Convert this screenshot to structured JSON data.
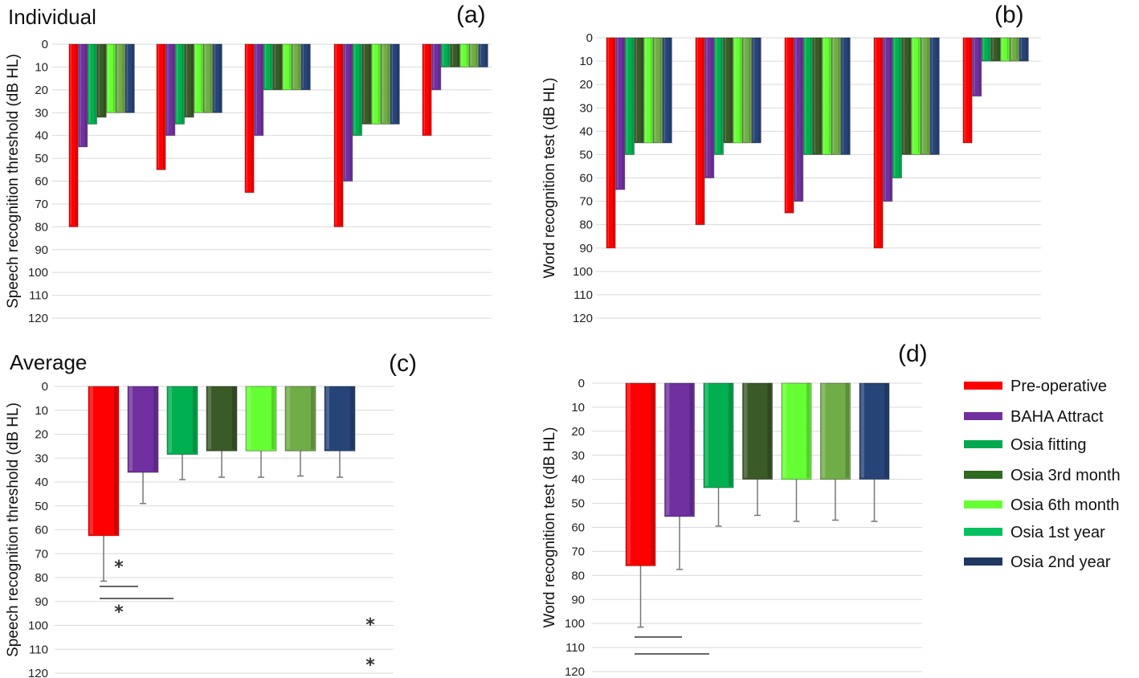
{
  "colors": [
    "#ff0000",
    "#7030a0",
    "#00b050",
    "#3a5a28",
    "#66ff33",
    "#70ad47",
    "#264478"
  ],
  "legend": {
    "placement": "right",
    "entries": [
      {
        "label": "Pre-operative",
        "color": "#ff0000"
      },
      {
        "label": "BAHA Attract",
        "color": "#7030a0"
      },
      {
        "label": "Osia fitting",
        "color": "#00a850"
      },
      {
        "label": "Osia 3rd month",
        "color": "#2e6b1e"
      },
      {
        "label": "Osia 6th month",
        "color": "#66ff33"
      },
      {
        "label": "Osia 1st year",
        "color": "#00c060"
      },
      {
        "label": "Osia 2nd year",
        "color": "#1f3864"
      }
    ]
  },
  "chart_data": [
    {
      "panel": "(a)",
      "title": "Individual",
      "type": "bar",
      "orientation": "inverted-y",
      "ylabel": "Speech recognition threshold (dB HL)",
      "ylim": [
        0,
        120
      ],
      "yticks": [
        "0",
        "10",
        "20",
        "30",
        "40",
        "50",
        "60",
        "70",
        "80",
        "90",
        "100",
        "110",
        "120"
      ],
      "grid": true,
      "series_names": [
        "Pre-operative",
        "BAHA Attract",
        "Osia fitting",
        "Osia 3rd month",
        "Osia 6th month",
        "Osia 1st year",
        "Osia 2nd year"
      ],
      "groups": [
        [
          80,
          45,
          35,
          32,
          30,
          30,
          30
        ],
        [
          55,
          40,
          35,
          32,
          30,
          30,
          30
        ],
        [
          65,
          40,
          20,
          20,
          20,
          20,
          20
        ],
        [
          80,
          60,
          40,
          35,
          35,
          35,
          35
        ],
        [
          40,
          20,
          10,
          10,
          10,
          10,
          10
        ]
      ]
    },
    {
      "panel": "(b)",
      "title": "",
      "type": "bar",
      "orientation": "inverted-y",
      "ylabel": "Word recognition test (dB HL)",
      "ylim": [
        0,
        120
      ],
      "yticks": [
        "0",
        "10",
        "20",
        "30",
        "40",
        "50",
        "60",
        "70",
        "80",
        "90",
        "100",
        "110",
        "120"
      ],
      "grid": true,
      "series_names": [
        "Pre-operative",
        "BAHA Attract",
        "Osia fitting",
        "Osia 3rd month",
        "Osia 6th month",
        "Osia 1st year",
        "Osia 2nd year"
      ],
      "groups": [
        [
          90,
          65,
          50,
          45,
          45,
          45,
          45
        ],
        [
          80,
          60,
          50,
          45,
          45,
          45,
          45
        ],
        [
          75,
          70,
          50,
          50,
          50,
          50,
          50
        ],
        [
          90,
          70,
          60,
          50,
          50,
          50,
          50
        ],
        [
          45,
          25,
          10,
          10,
          10,
          10,
          10
        ]
      ]
    },
    {
      "panel": "(c)",
      "title": "Average",
      "type": "bar",
      "orientation": "inverted-y",
      "ylabel": "Speech recognition threshold (dB HL)",
      "ylim": [
        0,
        120
      ],
      "yticks": [
        "0",
        "10",
        "20",
        "30",
        "40",
        "50",
        "60",
        "70",
        "80",
        "90",
        "100",
        "110",
        "120"
      ],
      "grid": true,
      "series_names": [
        "Pre-operative",
        "BAHA Attract",
        "Osia fitting",
        "Osia 3rd month",
        "Osia 6th month",
        "Osia 1st year",
        "Osia 2nd year"
      ],
      "values": [
        62.5,
        36,
        28.5,
        27,
        27,
        27,
        27
      ],
      "error_upper": [
        81.5,
        49,
        39,
        38,
        38,
        37.5,
        38
      ],
      "significance": [
        {
          "from": "Pre-operative",
          "to": "BAHA Attract",
          "label": "*"
        },
        {
          "from": "Pre-operative",
          "to": "Osia fitting",
          "label": "*"
        }
      ]
    },
    {
      "panel": "(d)",
      "title": "",
      "type": "bar",
      "orientation": "inverted-y",
      "ylabel": "Word recognition test (dB HL)",
      "ylim": [
        0,
        120
      ],
      "yticks": [
        "0",
        "10",
        "20",
        "30",
        "40",
        "50",
        "60",
        "70",
        "80",
        "90",
        "100",
        "110",
        "120"
      ],
      "grid": true,
      "series_names": [
        "Pre-operative",
        "BAHA Attract",
        "Osia fitting",
        "Osia 3rd month",
        "Osia 6th month",
        "Osia 1st year",
        "Osia 2nd year"
      ],
      "values": [
        76,
        55.5,
        43.5,
        40,
        40,
        40,
        40
      ],
      "error_upper": [
        101.5,
        77.5,
        59.5,
        55,
        57.5,
        57,
        57.5
      ],
      "significance": [
        {
          "from": "Pre-operative",
          "to": "BAHA Attract",
          "label": "*"
        },
        {
          "from": "Pre-operative",
          "to": "Osia fitting",
          "label": "*"
        }
      ]
    }
  ]
}
